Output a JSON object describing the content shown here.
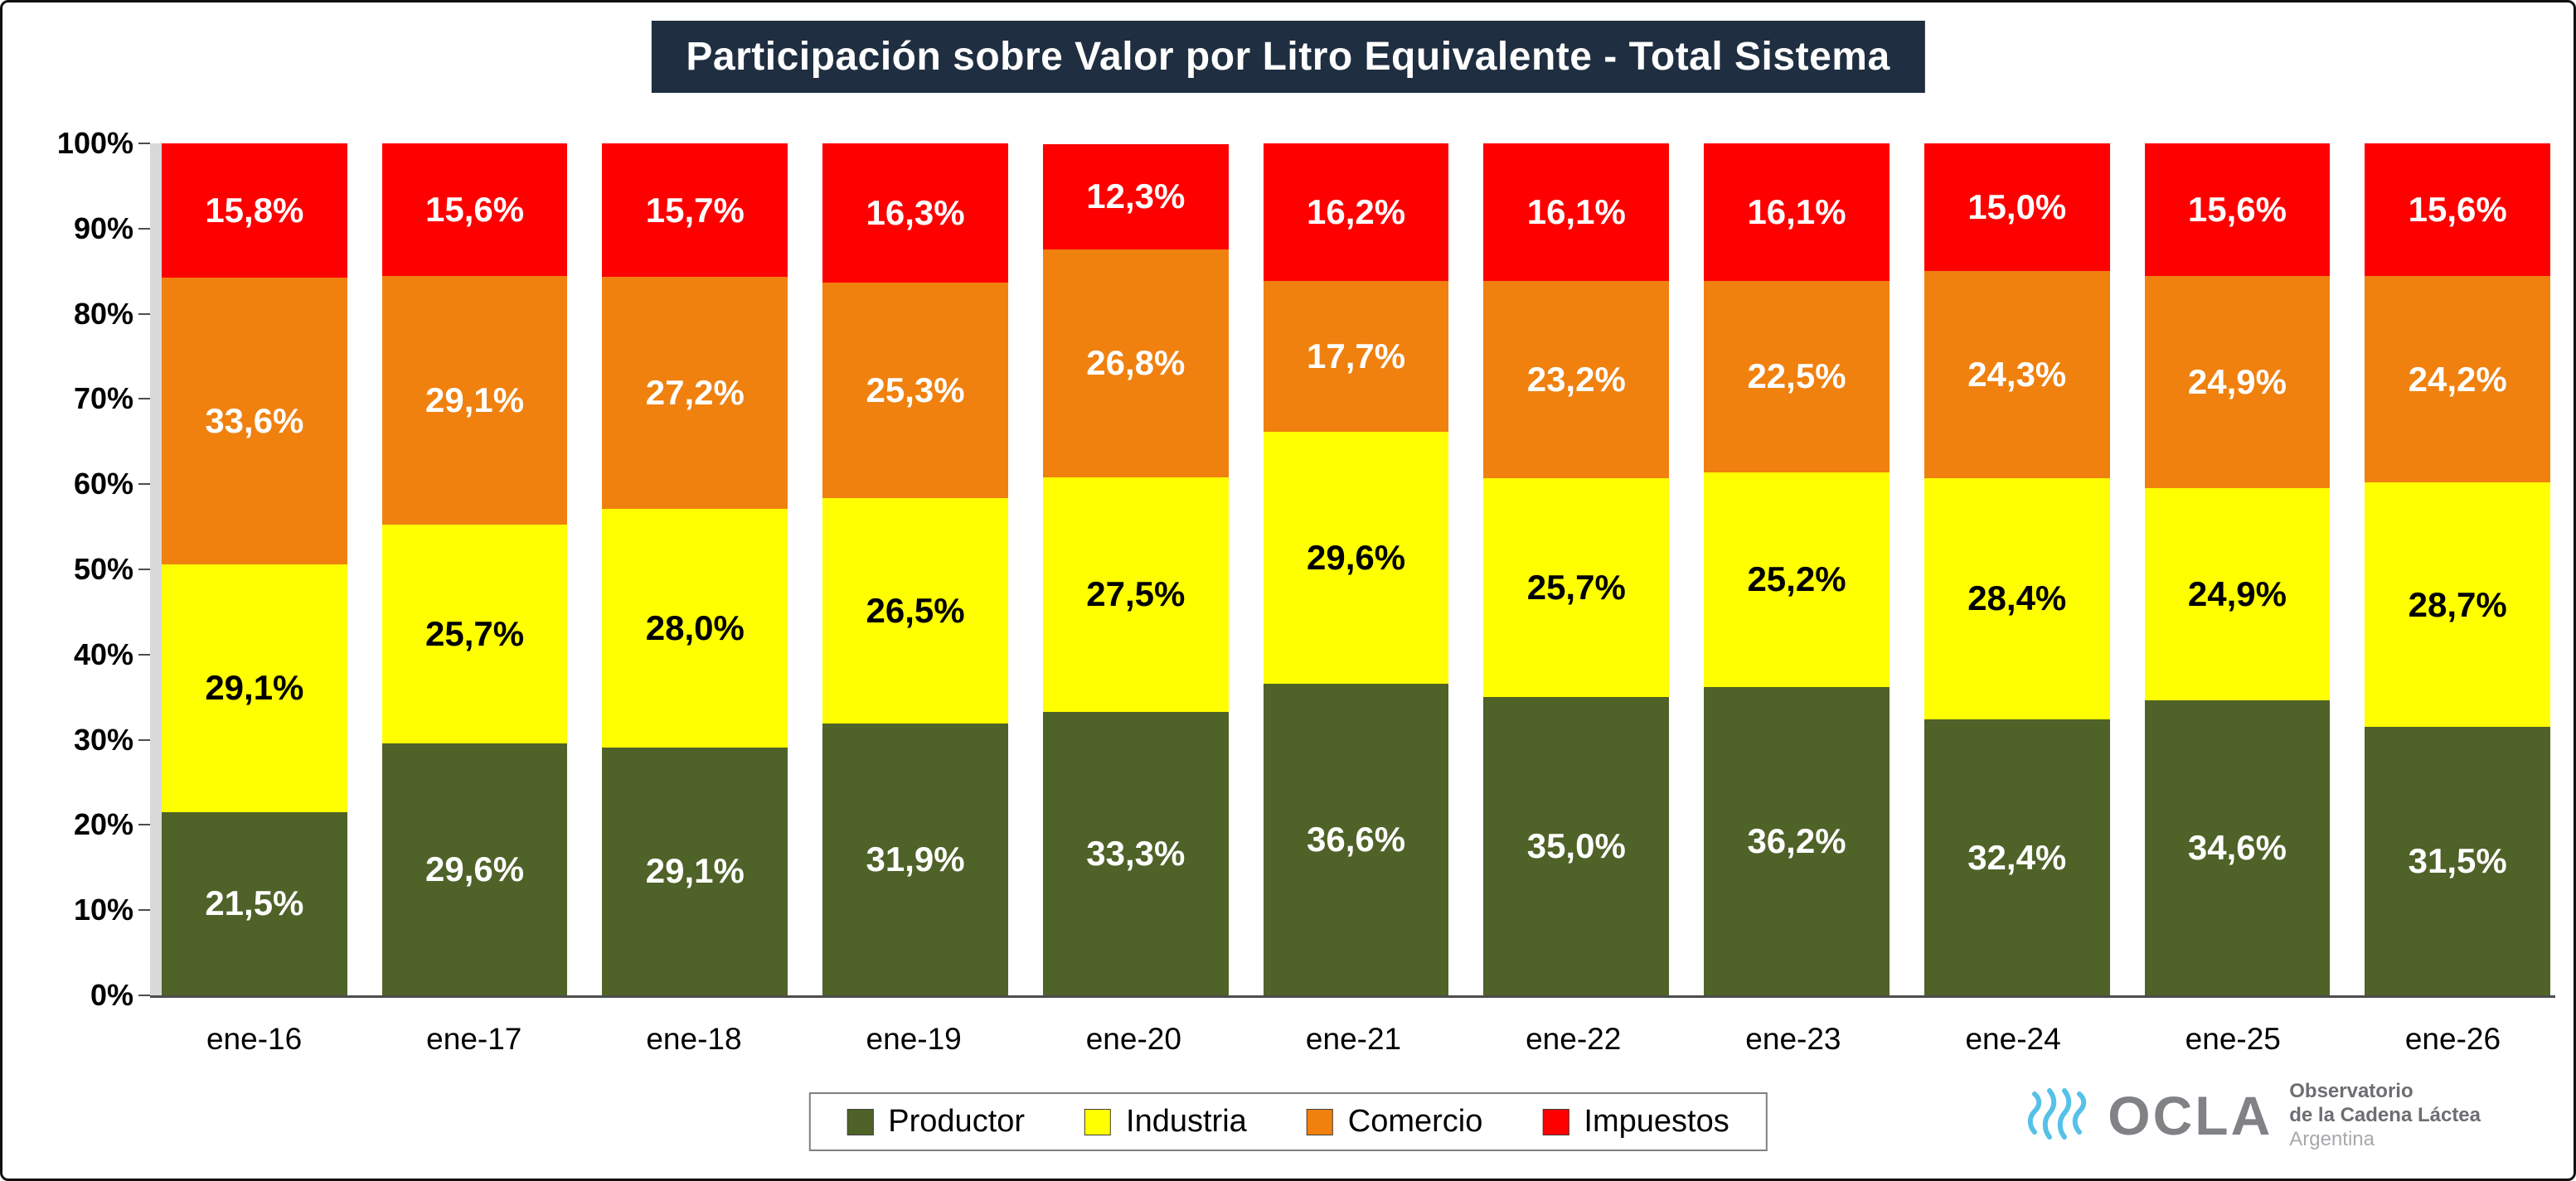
{
  "title": "Participación sobre Valor por Litro Equivalente - Total Sistema",
  "chart_data": {
    "type": "bar",
    "stacked": true,
    "title": "Participación sobre Valor por Litro Equivalente - Total Sistema",
    "categories": [
      "ene-16",
      "ene-17",
      "ene-18",
      "ene-19",
      "ene-20",
      "ene-21",
      "ene-22",
      "ene-23",
      "ene-24",
      "ene-25",
      "ene-26"
    ],
    "series": [
      {
        "name": "Productor",
        "color": "#4f6228",
        "label_color": "#ffffff",
        "values": [
          21.5,
          29.6,
          29.1,
          31.9,
          33.3,
          36.6,
          35.0,
          36.2,
          32.4,
          34.6,
          31.5
        ],
        "labels": [
          "21,5%",
          "29,6%",
          "29,1%",
          "31,9%",
          "33,3%",
          "36,6%",
          "35,0%",
          "36,2%",
          "32,4%",
          "34,6%",
          "31,5%"
        ]
      },
      {
        "name": "Industria",
        "color": "#ffff00",
        "label_color": "#000000",
        "values": [
          29.1,
          25.7,
          28.0,
          26.5,
          27.5,
          29.6,
          25.7,
          25.2,
          28.4,
          24.9,
          28.7
        ],
        "labels": [
          "29,1%",
          "25,7%",
          "28,0%",
          "26,5%",
          "27,5%",
          "29,6%",
          "25,7%",
          "25,2%",
          "28,4%",
          "24,9%",
          "28,7%"
        ]
      },
      {
        "name": "Comercio",
        "color": "#f0810f",
        "label_color": "#ffffff",
        "values": [
          33.6,
          29.1,
          27.2,
          25.3,
          26.8,
          17.7,
          23.2,
          22.5,
          24.3,
          24.9,
          24.2
        ],
        "labels": [
          "33,6%",
          "29,1%",
          "27,2%",
          "25,3%",
          "26,8%",
          "17,7%",
          "23,2%",
          "22,5%",
          "24,3%",
          "24,9%",
          "24,2%"
        ]
      },
      {
        "name": "Impuestos",
        "color": "#fe0000",
        "label_color": "#ffffff",
        "values": [
          15.8,
          15.6,
          15.7,
          16.3,
          12.3,
          16.2,
          16.1,
          16.1,
          15.0,
          15.6,
          15.6
        ],
        "labels": [
          "15,8%",
          "15,6%",
          "15,7%",
          "16,3%",
          "12,3%",
          "16,2%",
          "16,1%",
          "16,1%",
          "15,0%",
          "15,6%",
          "15,6%"
        ]
      }
    ],
    "yticks": [
      "100%",
      "90%",
      "80%",
      "70%",
      "60%",
      "50%",
      "40%",
      "30%",
      "20%",
      "10%",
      "0%"
    ],
    "ylim": [
      0,
      100
    ],
    "legend_position": "bottom",
    "legend_entries": [
      "Productor",
      "Industria",
      "Comercio",
      "Impuestos"
    ]
  },
  "logo": {
    "brand": "OCLA",
    "line1": "Observatorio",
    "line2": "de la Cadena Láctea",
    "line3": "Argentina"
  }
}
